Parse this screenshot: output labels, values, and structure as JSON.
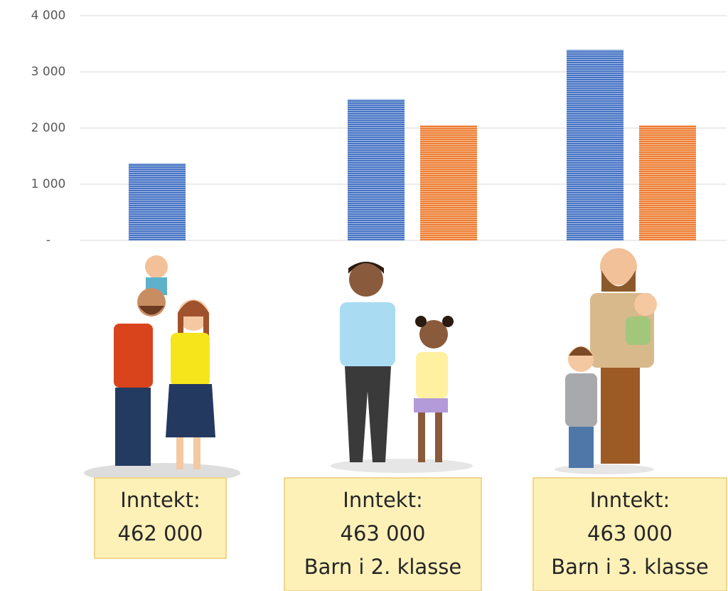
{
  "chart_data": {
    "type": "bar",
    "categories": [
      null,
      null,
      null
    ],
    "series": [
      {
        "color": "#4472c4",
        "values": [
          1370,
          2510,
          3390
        ]
      },
      {
        "color": "#ed7d31",
        "values": [
          null,
          2050,
          2050
        ]
      }
    ],
    "ylim": [
      0,
      4000
    ],
    "yticks": [
      {
        "value": 0,
        "label": "-"
      },
      {
        "value": 1000,
        "label": "1 000"
      },
      {
        "value": 2000,
        "label": "2 000"
      },
      {
        "value": 3000,
        "label": "3 000"
      },
      {
        "value": 4000,
        "label": "4 000"
      }
    ],
    "grid": true
  },
  "captions": [
    {
      "lines": [
        "Inntekt:",
        "462 000"
      ]
    },
    {
      "lines": [
        "Inntekt:",
        "463 000",
        "Barn i 2. klasse"
      ]
    },
    {
      "lines": [
        "Inntekt:",
        "463 000",
        "Barn i 3. klasse"
      ]
    }
  ]
}
